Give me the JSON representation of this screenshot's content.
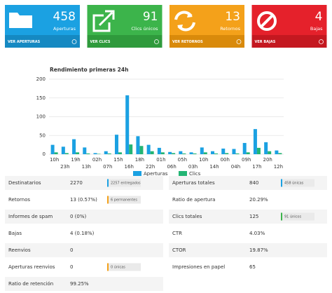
{
  "cards": [
    {
      "value": 458,
      "label": "Aperturas",
      "link": "VER APERTURAS",
      "color": "#1ba1e2",
      "dark": "#1589c2"
    },
    {
      "value": 91,
      "label": "Clics únicos",
      "link": "VER CLICS",
      "color": "#3cb44b",
      "dark": "#2f9a3c"
    },
    {
      "value": 13,
      "label": "Retornos",
      "link": "VER RETORNOS",
      "color": "#f4a11a",
      "dark": "#d98a0b"
    },
    {
      "value": 4,
      "label": "Bajas",
      "link": "VER BAJAS",
      "color": "#e5212b",
      "dark": "#c41820"
    }
  ],
  "chart_data": {
    "type": "bar",
    "title": "Rendimiento primeras 24h",
    "categories": [
      "10h",
      "23h",
      "19h",
      "13h",
      "02h",
      "07h",
      "15h",
      "16h",
      "18h",
      "22h",
      "01h",
      "06h",
      "05h",
      "03h",
      "10h",
      "14h",
      "00h",
      "04h",
      "09h",
      "17h",
      "20h",
      "12h"
    ],
    "series": [
      {
        "name": "Aperturas",
        "color": "#1ba1e2",
        "values": [
          25,
          20,
          40,
          18,
          3,
          8,
          52,
          157,
          48,
          25,
          17,
          6,
          8,
          5,
          18,
          8,
          15,
          14,
          30,
          67,
          32,
          10
        ]
      },
      {
        "name": "Clics",
        "color": "#23b574",
        "values": [
          5,
          3,
          5,
          2,
          1,
          2,
          5,
          26,
          22,
          8,
          5,
          3,
          2,
          2,
          5,
          2,
          3,
          2,
          5,
          17,
          8,
          3
        ]
      }
    ],
    "ylim": [
      0,
      200
    ],
    "yticks": [
      0,
      50,
      100,
      150,
      200
    ],
    "grid": true,
    "legend": "bottom"
  },
  "tables": [
    {
      "rows": [
        {
          "label": "Destinatarios",
          "value": "2270",
          "badge": "2257 entregados",
          "badge_color": "#1ba1e2"
        },
        {
          "label": "Retornos",
          "value": "13 (0.57%)",
          "badge": "6 permanentes",
          "badge_color": "#f4a11a"
        },
        {
          "label": "Informes de spam",
          "value": "0 (0%)"
        },
        {
          "label": "Bajas",
          "value": "4 (0.18%)"
        },
        {
          "label": "Reenvios",
          "value": "0"
        },
        {
          "label": "Aperturas reenvios",
          "value": "0",
          "badge": "0 únicas",
          "badge_color": "#f4a11a"
        },
        {
          "label": "Ratio de retención",
          "value": "99.25%"
        }
      ]
    },
    {
      "rows": [
        {
          "label": "Aperturas totales",
          "value": "840",
          "badge": "458 únicas",
          "badge_color": "#1ba1e2"
        },
        {
          "label": "Ratio de apertura",
          "value": "20.29%"
        },
        {
          "label": "Clics totales",
          "value": "125",
          "badge": "91 únicos",
          "badge_color": "#3cb44b"
        },
        {
          "label": "CTR",
          "value": "4.03%"
        },
        {
          "label": "CTOR",
          "value": "19.87%"
        },
        {
          "label": "Impresiones en papel",
          "value": "65"
        }
      ]
    }
  ]
}
